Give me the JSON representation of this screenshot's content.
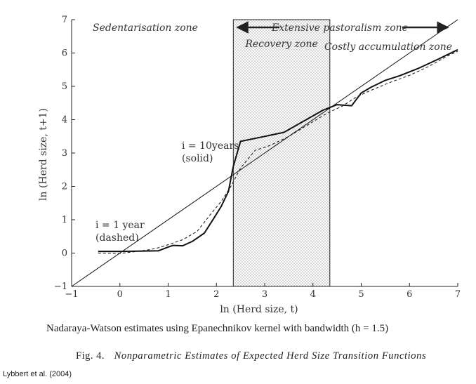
{
  "chart_data": {
    "type": "line",
    "xlabel": "ln (Herd size, t)",
    "ylabel": "ln (Herd size, t+1)",
    "xlim": [
      -1,
      7
    ],
    "ylim": [
      -1,
      7
    ],
    "x_ticks": [
      "−1",
      "0",
      "1",
      "2",
      "3",
      "4",
      "5",
      "6",
      "7"
    ],
    "y_ticks": [
      "−1",
      "0",
      "1",
      "2",
      "3",
      "4",
      "5",
      "6",
      "7"
    ],
    "zones": {
      "sedentarisation": "Sedentarisation zone",
      "extensive": "Extensive pastoralism zone",
      "recovery": "Recovery zone",
      "costly": "Costly accumulation zone"
    },
    "recovery_band": [
      2.35,
      4.35
    ],
    "annotations": {
      "solid_line1": "i = 10years",
      "solid_line2": "(solid)",
      "dashed_line1": "i = 1 year",
      "dashed_line2": "(dashed)"
    },
    "series": [
      {
        "style": "solid-thin",
        "x": [
          -1,
          7
        ],
        "y": [
          -1,
          7
        ]
      },
      {
        "style": "solid-thick",
        "x": [
          -0.45,
          0.0,
          0.5,
          0.8,
          1.0,
          1.1,
          1.3,
          1.5,
          1.75,
          1.95,
          2.1,
          2.25,
          2.35,
          2.5,
          3.0,
          3.4,
          3.8,
          4.2,
          4.5,
          4.8,
          5.0,
          5.2,
          5.5,
          5.8,
          6.2,
          6.6,
          7.0
        ],
        "y": [
          0.05,
          0.05,
          0.06,
          0.07,
          0.18,
          0.23,
          0.22,
          0.35,
          0.6,
          1.05,
          1.4,
          1.85,
          2.6,
          3.35,
          3.5,
          3.62,
          3.95,
          4.28,
          4.45,
          4.42,
          4.8,
          4.97,
          5.18,
          5.32,
          5.55,
          5.82,
          6.1
        ]
      },
      {
        "style": "dashed",
        "x": [
          -0.45,
          0.0,
          0.3,
          0.6,
          0.8,
          1.0,
          1.3,
          1.6,
          1.9,
          2.1,
          2.3,
          2.5,
          2.8,
          3.1,
          3.5,
          3.9,
          4.3,
          4.6,
          4.9,
          5.2,
          5.6,
          6.0,
          6.4,
          6.8,
          7.0
        ],
        "y": [
          0.0,
          -0.01,
          0.04,
          0.1,
          0.16,
          0.25,
          0.4,
          0.65,
          1.2,
          1.55,
          2.0,
          2.55,
          3.08,
          3.22,
          3.5,
          3.85,
          4.2,
          4.4,
          4.68,
          4.88,
          5.12,
          5.33,
          5.6,
          5.92,
          6.05
        ]
      }
    ]
  },
  "caption_main": "Nadaraya-Watson estimates using Epanechnikov kernel with bandwidth (h = 1.5)",
  "caption_fig_label": "Fig. 4.",
  "caption_fig_title": "Nonparametric Estimates of Expected Herd Size Transition Functions",
  "source": "Lybbert et al. (2004)"
}
